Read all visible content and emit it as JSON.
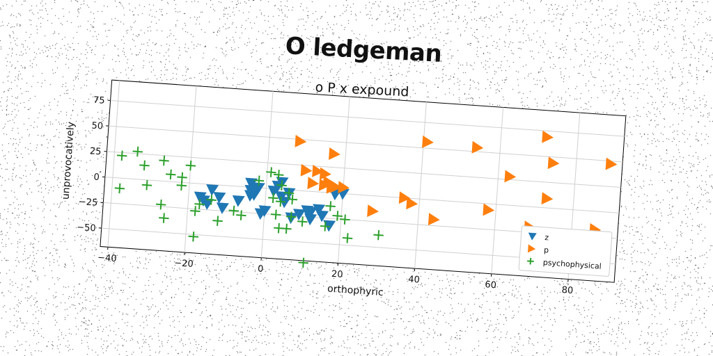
{
  "title": "O ledgeman",
  "subtitle": "o P x expound",
  "chart_data": {
    "type": "scatter",
    "title": "o P x expound",
    "xlabel": "orthophyric",
    "ylabel": "unprovocatively",
    "xlim": [
      -42,
      92
    ],
    "ylim": [
      -68,
      95
    ],
    "xticks": [
      -40,
      -20,
      0,
      20,
      40,
      60,
      80
    ],
    "yticks": [
      -50,
      -25,
      0,
      25,
      50,
      75
    ],
    "grid": true,
    "legend_position": "lower-right",
    "series": [
      {
        "name": "z",
        "marker": "triangle-down",
        "color": "#1f77b4",
        "points": [
          [
            -14,
            -5
          ],
          [
            -17,
            -13
          ],
          [
            -16,
            -16
          ],
          [
            -12,
            -12
          ],
          [
            -15,
            -19
          ],
          [
            -11,
            -22
          ],
          [
            -7,
            -14
          ],
          [
            -4,
            -8
          ],
          [
            -3,
            -7
          ],
          [
            -4,
            4
          ],
          [
            -3,
            -1
          ],
          [
            -2,
            0
          ],
          [
            -4,
            -3
          ],
          [
            -1,
            -25
          ],
          [
            0,
            -22
          ],
          [
            4,
            -7
          ],
          [
            5,
            -12
          ],
          [
            4,
            7
          ],
          [
            3,
            3
          ],
          [
            6,
            -3
          ],
          [
            2,
            -2
          ],
          [
            7,
            -27
          ],
          [
            9,
            -23
          ],
          [
            11,
            -19
          ],
          [
            12,
            -20
          ],
          [
            14,
            -17
          ],
          [
            15,
            -23
          ],
          [
            17,
            -32
          ],
          [
            20,
            0
          ],
          [
            18,
            -1
          ],
          [
            12,
            -27
          ]
        ]
      },
      {
        "name": "p",
        "marker": "triangle-right",
        "color": "#ff7f0e",
        "points": [
          [
            8,
            48
          ],
          [
            17,
            38
          ],
          [
            10,
            20
          ],
          [
            13,
            20
          ],
          [
            15,
            18
          ],
          [
            12,
            8
          ],
          [
            15,
            7
          ],
          [
            17,
            5
          ],
          [
            16,
            10
          ],
          [
            18,
            6
          ],
          [
            20,
            6
          ],
          [
            28,
            -15
          ],
          [
            36,
            0
          ],
          [
            38,
            -5
          ],
          [
            44,
            -19
          ],
          [
            41,
            56
          ],
          [
            54,
            54
          ],
          [
            58,
            -6
          ],
          [
            63,
            28
          ],
          [
            69,
            -20
          ],
          [
            72,
            69
          ],
          [
            74,
            44
          ],
          [
            73,
            9
          ],
          [
            86,
            -18
          ],
          [
            89,
            47
          ]
        ]
      },
      {
        "name": "psychophysical",
        "marker": "plus",
        "color": "#2ca02c",
        "points": [
          [
            -38,
            22
          ],
          [
            -34,
            27
          ],
          [
            -32,
            14
          ],
          [
            -27,
            20
          ],
          [
            -25,
            7
          ],
          [
            -22,
            5
          ],
          [
            -20,
            17
          ],
          [
            -22,
            -3
          ],
          [
            -31,
            -5
          ],
          [
            -38,
            -10
          ],
          [
            -27,
            -23
          ],
          [
            -26,
            -36
          ],
          [
            -14,
            -15
          ],
          [
            -17,
            -20
          ],
          [
            -18,
            -27
          ],
          [
            -12,
            -35
          ],
          [
            -18,
            -52
          ],
          [
            -8,
            -24
          ],
          [
            -6,
            -28
          ],
          [
            -2,
            7
          ],
          [
            1,
            16
          ],
          [
            3,
            14
          ],
          [
            4,
            4
          ],
          [
            6,
            -3
          ],
          [
            2,
            -9
          ],
          [
            4,
            -12
          ],
          [
            7,
            -9
          ],
          [
            3,
            -25
          ],
          [
            7,
            -26
          ],
          [
            4,
            -38
          ],
          [
            6,
            -38
          ],
          [
            10,
            -30
          ],
          [
            16,
            -33
          ],
          [
            17,
            -13
          ],
          [
            19,
            -22
          ],
          [
            21,
            -25
          ],
          [
            22,
            -43
          ],
          [
            30,
            -38
          ],
          [
            11,
            -70
          ]
        ]
      }
    ]
  }
}
